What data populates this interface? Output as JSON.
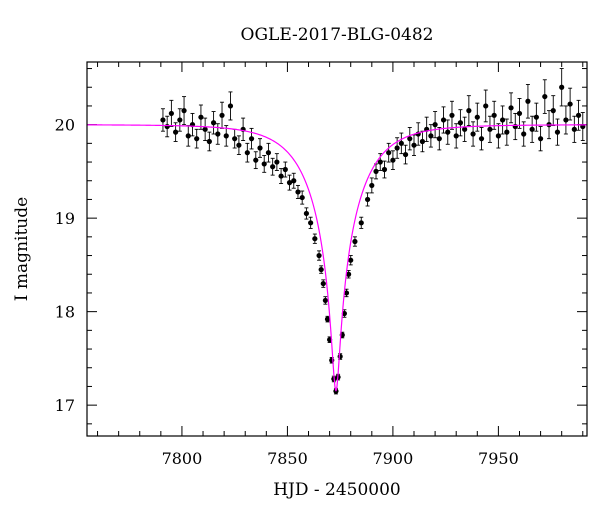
{
  "chart_data": {
    "type": "scatter",
    "title": "OGLE-2017-BLG-0482",
    "xlabel": "HJD - 2450000",
    "ylabel": "I magnitude",
    "xlim": [
      7755,
      7992
    ],
    "ylim": [
      20.67,
      16.67
    ],
    "y_inverted": true,
    "xticks": [
      7800,
      7850,
      7900,
      7950
    ],
    "yticks": [
      17,
      18,
      19,
      20
    ],
    "grid": false,
    "colors": {
      "points": "#000000",
      "model": "#ff00ff",
      "axes": "#000000"
    },
    "model_fit": {
      "name": "",
      "t0": 7873.0,
      "baseline_mag": 20.0,
      "peak_mag": 17.15,
      "description_values": "point-lens curve from baseline 20.0 to peak 17.15 at HJD 7873"
    },
    "series": [
      {
        "name": "",
        "points": [
          [
            7791,
            20.05,
            0.12
          ],
          [
            7793,
            19.98,
            0.11
          ],
          [
            7795,
            20.12,
            0.14
          ],
          [
            7797,
            19.92,
            0.1
          ],
          [
            7799,
            20.05,
            0.12
          ],
          [
            7801,
            20.15,
            0.15
          ],
          [
            7803,
            19.88,
            0.11
          ],
          [
            7805,
            20.0,
            0.12
          ],
          [
            7807,
            19.85,
            0.1
          ],
          [
            7809,
            20.08,
            0.13
          ],
          [
            7811,
            19.95,
            0.12
          ],
          [
            7813,
            19.82,
            0.1
          ],
          [
            7815,
            20.02,
            0.12
          ],
          [
            7817,
            19.9,
            0.11
          ],
          [
            7819,
            20.1,
            0.14
          ],
          [
            7821,
            19.88,
            0.11
          ],
          [
            7823,
            20.2,
            0.15
          ],
          [
            7825,
            19.85,
            0.1
          ],
          [
            7827,
            19.78,
            0.1
          ],
          [
            7829,
            19.95,
            0.12
          ],
          [
            7831,
            19.7,
            0.1
          ],
          [
            7833,
            19.85,
            0.11
          ],
          [
            7835,
            19.62,
            0.09
          ],
          [
            7837,
            19.75,
            0.1
          ],
          [
            7839,
            19.58,
            0.09
          ],
          [
            7841,
            19.7,
            0.1
          ],
          [
            7843,
            19.55,
            0.09
          ],
          [
            7845,
            19.6,
            0.09
          ],
          [
            7847,
            19.45,
            0.08
          ],
          [
            7849,
            19.52,
            0.08
          ],
          [
            7851,
            19.38,
            0.08
          ],
          [
            7853,
            19.4,
            0.08
          ],
          [
            7855,
            19.28,
            0.07
          ],
          [
            7857,
            19.22,
            0.07
          ],
          [
            7859,
            19.05,
            0.06
          ],
          [
            7861,
            18.95,
            0.06
          ],
          [
            7863,
            18.78,
            0.05
          ],
          [
            7865,
            18.6,
            0.05
          ],
          [
            7866,
            18.45,
            0.04
          ],
          [
            7867,
            18.3,
            0.04
          ],
          [
            7868,
            18.12,
            0.04
          ],
          [
            7869,
            17.92,
            0.03
          ],
          [
            7870,
            17.7,
            0.03
          ],
          [
            7871,
            17.48,
            0.03
          ],
          [
            7872,
            17.28,
            0.03
          ],
          [
            7873,
            17.15,
            0.03
          ],
          [
            7874,
            17.3,
            0.03
          ],
          [
            7875,
            17.52,
            0.03
          ],
          [
            7876,
            17.75,
            0.03
          ],
          [
            7877,
            17.98,
            0.04
          ],
          [
            7878,
            18.2,
            0.04
          ],
          [
            7879,
            18.4,
            0.04
          ],
          [
            7880,
            18.55,
            0.05
          ],
          [
            7882,
            18.75,
            0.05
          ],
          [
            7885,
            18.95,
            0.06
          ],
          [
            7888,
            19.2,
            0.07
          ],
          [
            7890,
            19.35,
            0.08
          ],
          [
            7892,
            19.5,
            0.08
          ],
          [
            7894,
            19.6,
            0.09
          ],
          [
            7896,
            19.52,
            0.09
          ],
          [
            7898,
            19.7,
            0.1
          ],
          [
            7900,
            19.62,
            0.1
          ],
          [
            7902,
            19.75,
            0.11
          ],
          [
            7904,
            19.8,
            0.11
          ],
          [
            7906,
            19.68,
            0.1
          ],
          [
            7908,
            19.85,
            0.12
          ],
          [
            7910,
            19.78,
            0.11
          ],
          [
            7912,
            19.9,
            0.12
          ],
          [
            7914,
            19.82,
            0.11
          ],
          [
            7916,
            19.95,
            0.13
          ],
          [
            7918,
            19.88,
            0.12
          ],
          [
            7920,
            20.0,
            0.14
          ],
          [
            7922,
            19.85,
            0.12
          ],
          [
            7924,
            20.05,
            0.14
          ],
          [
            7926,
            19.92,
            0.13
          ],
          [
            7928,
            20.1,
            0.15
          ],
          [
            7930,
            19.88,
            0.13
          ],
          [
            7932,
            20.02,
            0.14
          ],
          [
            7934,
            19.95,
            0.13
          ],
          [
            7936,
            20.15,
            0.16
          ],
          [
            7938,
            19.9,
            0.13
          ],
          [
            7940,
            20.08,
            0.15
          ],
          [
            7942,
            19.85,
            0.12
          ],
          [
            7944,
            20.2,
            0.17
          ],
          [
            7946,
            19.95,
            0.14
          ],
          [
            7948,
            20.1,
            0.15
          ],
          [
            7950,
            19.88,
            0.13
          ],
          [
            7952,
            20.05,
            0.15
          ],
          [
            7954,
            19.92,
            0.14
          ],
          [
            7956,
            20.18,
            0.16
          ],
          [
            7958,
            19.98,
            0.14
          ],
          [
            7960,
            20.12,
            0.16
          ],
          [
            7962,
            19.9,
            0.13
          ],
          [
            7964,
            20.25,
            0.18
          ],
          [
            7966,
            19.95,
            0.14
          ],
          [
            7968,
            20.08,
            0.15
          ],
          [
            7970,
            19.85,
            0.13
          ],
          [
            7972,
            20.3,
            0.18
          ],
          [
            7974,
            20.0,
            0.15
          ],
          [
            7976,
            20.15,
            0.16
          ],
          [
            7978,
            19.92,
            0.14
          ],
          [
            7980,
            20.4,
            0.2
          ],
          [
            7982,
            20.05,
            0.15
          ],
          [
            7984,
            20.22,
            0.17
          ],
          [
            7986,
            19.95,
            0.14
          ],
          [
            7988,
            20.1,
            0.16
          ],
          [
            7990,
            19.98,
            0.15
          ]
        ]
      }
    ]
  }
}
